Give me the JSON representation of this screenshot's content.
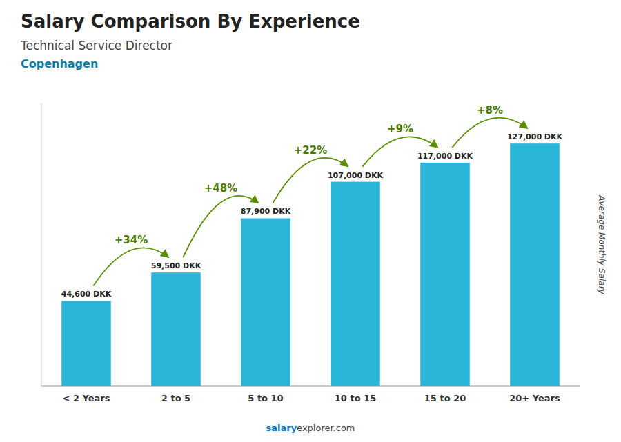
{
  "chart_data": {
    "type": "bar",
    "title": "Salary Comparison By Experience",
    "subtitle": "Technical Service Director",
    "y_label": "Average Monthly Salary",
    "categories": [
      "< 2 Years",
      "2 to 5",
      "5 to 10",
      "10 to 15",
      "15 to 20",
      "20+ Years"
    ],
    "values": [
      44600,
      59500,
      87900,
      107000,
      117000,
      127000
    ],
    "value_labels": [
      "44,600 DKK",
      "59,500 DKK",
      "87,900 DKK",
      "107,000 DKK",
      "117,000 DKK",
      "127,000 DKK"
    ],
    "data_labels": true,
    "color": "#29b6d8",
    "ylim": [
      0,
      148000
    ],
    "tick_labels": "x",
    "grid": false,
    "annotations": [
      {
        "text": "Copenhagen"
      },
      {
        "text": "+34%",
        "from": 0,
        "to": 1
      },
      {
        "text": "+48%",
        "from": 1,
        "to": 2
      },
      {
        "text": "+22%",
        "from": 2,
        "to": 3
      },
      {
        "text": "+9%",
        "from": 3,
        "to": 4
      },
      {
        "text": "+8%",
        "from": 4,
        "to": 5
      },
      {
        "text": "salary"
      },
      {
        "text": "explorer.com"
      }
    ]
  }
}
